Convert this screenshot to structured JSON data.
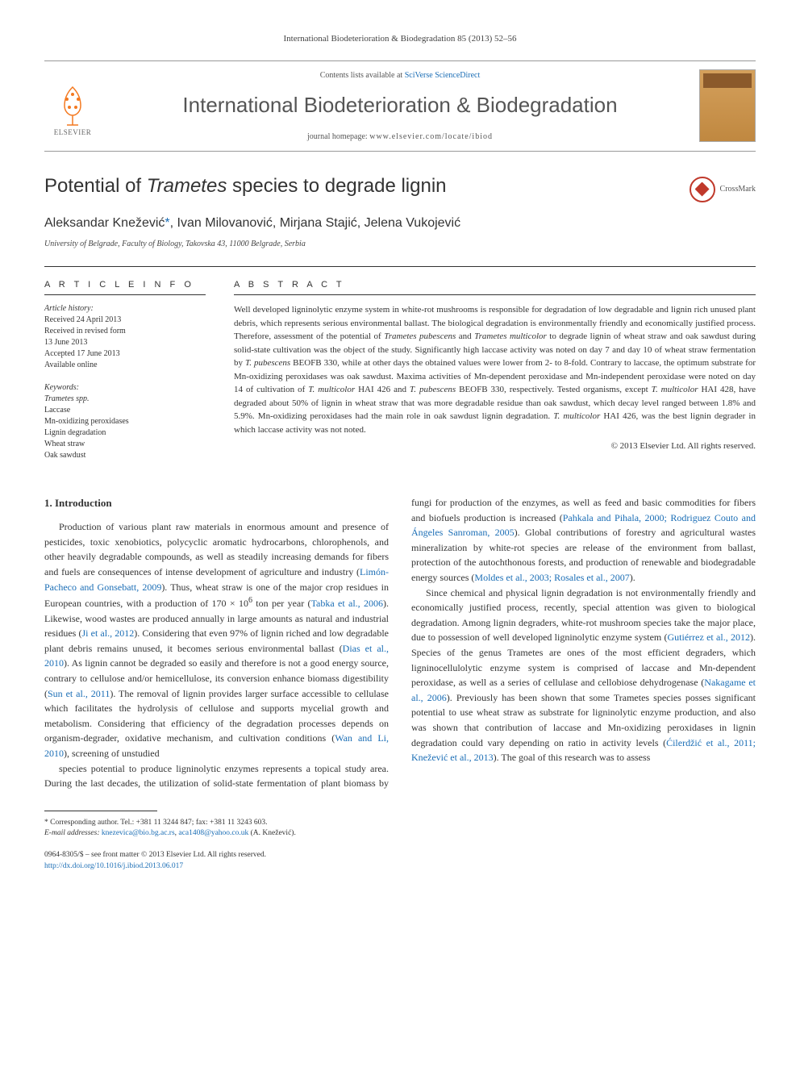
{
  "citation": "International Biodeterioration & Biodegradation 85 (2013) 52–56",
  "banner": {
    "contents_prefix": "Contents lists available at ",
    "contents_link": "SciVerse ScienceDirect",
    "journal": "International Biodeterioration & Biodegradation",
    "homepage_prefix": "journal homepage: ",
    "homepage_url": "www.elsevier.com/locate/ibiod",
    "publisher": "ELSEVIER"
  },
  "title_pre": "Potential of ",
  "title_italic": "Trametes",
  "title_post": " species to degrade lignin",
  "crossmark": "CrossMark",
  "authors_html": "Aleksandar Knežević<span class='corr'>*</span>, Ivan Milovanović, Mirjana Stajić, Jelena Vukojević",
  "affiliation": "University of Belgrade, Faculty of Biology, Takovska 43, 11000 Belgrade, Serbia",
  "meta": {
    "info_heading": "A R T I C L E  I N F O",
    "history_label": "Article history:",
    "history": [
      "Received 24 April 2013",
      "Received in revised form",
      "13 June 2013",
      "Accepted 17 June 2013",
      "Available online"
    ],
    "keywords_label": "Keywords:",
    "keywords": [
      "Trametes spp.",
      "Laccase",
      "Mn-oxidizing peroxidases",
      "Lignin degradation",
      "Wheat straw",
      "Oak sawdust"
    ]
  },
  "abstract": {
    "heading": "A B S T R A C T",
    "text": "Well developed ligninolytic enzyme system in white-rot mushrooms is responsible for degradation of low degradable and lignin rich unused plant debris, which represents serious environmental ballast. The biological degradation is environmentally friendly and economically justified process. Therefore, assessment of the potential of <span class='italic'>Trametes pubescens</span> and <span class='italic'>Trametes multicolor</span> to degrade lignin of wheat straw and oak sawdust during solid-state cultivation was the object of the study. Significantly high laccase activity was noted on day 7 and day 10 of wheat straw fermentation by <span class='italic'>T. pubescens</span> BEOFB 330, while at other days the obtained values were lower from 2- to 8-fold. Contrary to laccase, the optimum substrate for Mn-oxidizing peroxidases was oak sawdust. Maxima activities of Mn-dependent peroxidase and Mn-independent peroxidase were noted on day 14 of cultivation of <span class='italic'>T. multicolor</span> HAI 426 and <span class='italic'>T. pubescens</span> BEOFB 330, respectively. Tested organisms, except <span class='italic'>T. multicolor</span> HAI 428, have degraded about 50% of lignin in wheat straw that was more degradable residue than oak sawdust, which decay level ranged between 1.8% and 5.9%. Mn-oxidizing peroxidases had the main role in oak sawdust lignin degradation. <span class='italic'>T. multicolor</span> HAI 426, was the best lignin degrader in which laccase activity was not noted.",
    "copyright": "© 2013 Elsevier Ltd. All rights reserved."
  },
  "intro": {
    "heading": "1. Introduction",
    "p1": "Production of various plant raw materials in enormous amount and presence of pesticides, toxic xenobiotics, polycyclic aromatic hydrocarbons, chlorophenols, and other heavily degradable compounds, as well as steadily increasing demands for fibers and fuels are consequences of intense development of agriculture and industry (<span class='ref-link'>Limón-Pacheco and Gonsebatt, 2009</span>). Thus, wheat straw is one of the major crop residues in European countries, with a production of 170 × 10<sup>6</sup> ton per year (<span class='ref-link'>Tabka et al., 2006</span>). Likewise, wood wastes are produced annually in large amounts as natural and industrial residues (<span class='ref-link'>Ji et al., 2012</span>). Considering that even 97% of lignin riched and low degradable plant debris remains unused, it becomes serious environmental ballast (<span class='ref-link'>Dias et al., 2010</span>). As lignin cannot be degraded so easily and therefore is not a good energy source, contrary to cellulose and/or hemicellulose, its conversion enhance biomass digestibility (<span class='ref-link'>Sun et al., 2011</span>). The removal of lignin provides larger surface accessible to cellulase which facilitates the hydrolysis of cellulose and supports mycelial growth and metabolism. Considering that efficiency of the degradation processes depends on organism-degrader, oxidative mechanism, and cultivation conditions (<span class='ref-link'>Wan and Li, 2010</span>), screening of unstudied ",
    "p2": "species potential to produce ligninolytic enzymes represents a topical study area. During the last decades, the utilization of solid-state fermentation of plant biomass by fungi for production of the enzymes, as well as feed and basic commodities for fibers and biofuels production is increased (<span class='ref-link'>Pahkala and Pihala, 2000; Rodriguez Couto and Ángeles Sanroman, 2005</span>). Global contributions of forestry and agricultural wastes mineralization by white-rot species are release of the environment from ballast, protection of the autochthonous forests, and production of renewable and biodegradable energy sources (<span class='ref-link'>Moldes et al., 2003; Rosales et al., 2007</span>).",
    "p3": "Since chemical and physical lignin degradation is not environmentally friendly and economically justified process, recently, special attention was given to biological degradation. Among lignin degraders, white-rot mushroom species take the major place, due to possession of well developed ligninolytic enzyme system (<span class='ref-link'>Gutiérrez et al., 2012</span>). Species of the genus <span class='italic'>Trametes</span> are ones of the most efficient degraders, which ligninocellulolytic enzyme system is comprised of laccase and Mn-dependent peroxidase, as well as a series of cellulase and cellobiose dehydrogenase (<span class='ref-link'>Nakagame et al., 2006</span>). Previously has been shown that some <span class='italic'>Trametes</span> species posses significant potential to use wheat straw as substrate for ligninolytic enzyme production, and also was shown that contribution of laccase and Mn-oxidizing peroxidases in lignin degradation could vary depending on ratio in activity levels (<span class='ref-link'>Ćilerdžić et al., 2011; Knežević et al., 2013</span>). The goal of this research was to assess"
  },
  "footnote": {
    "corr": "* Corresponding author. Tel.: +381 11 3244 847; fax: +381 11 3243 603.",
    "email_label": "E-mail addresses:",
    "email1": "knezevica@bio.bg.ac.rs",
    "email2": "aca1408@yahoo.co.uk",
    "email_suffix": "(A. Knežević)."
  },
  "bottom": {
    "issn": "0964-8305/$ – see front matter © 2013 Elsevier Ltd. All rights reserved.",
    "doi": "http://dx.doi.org/10.1016/j.ibiod.2013.06.017"
  },
  "colors": {
    "link": "#1a6db5",
    "rule": "#333333"
  }
}
